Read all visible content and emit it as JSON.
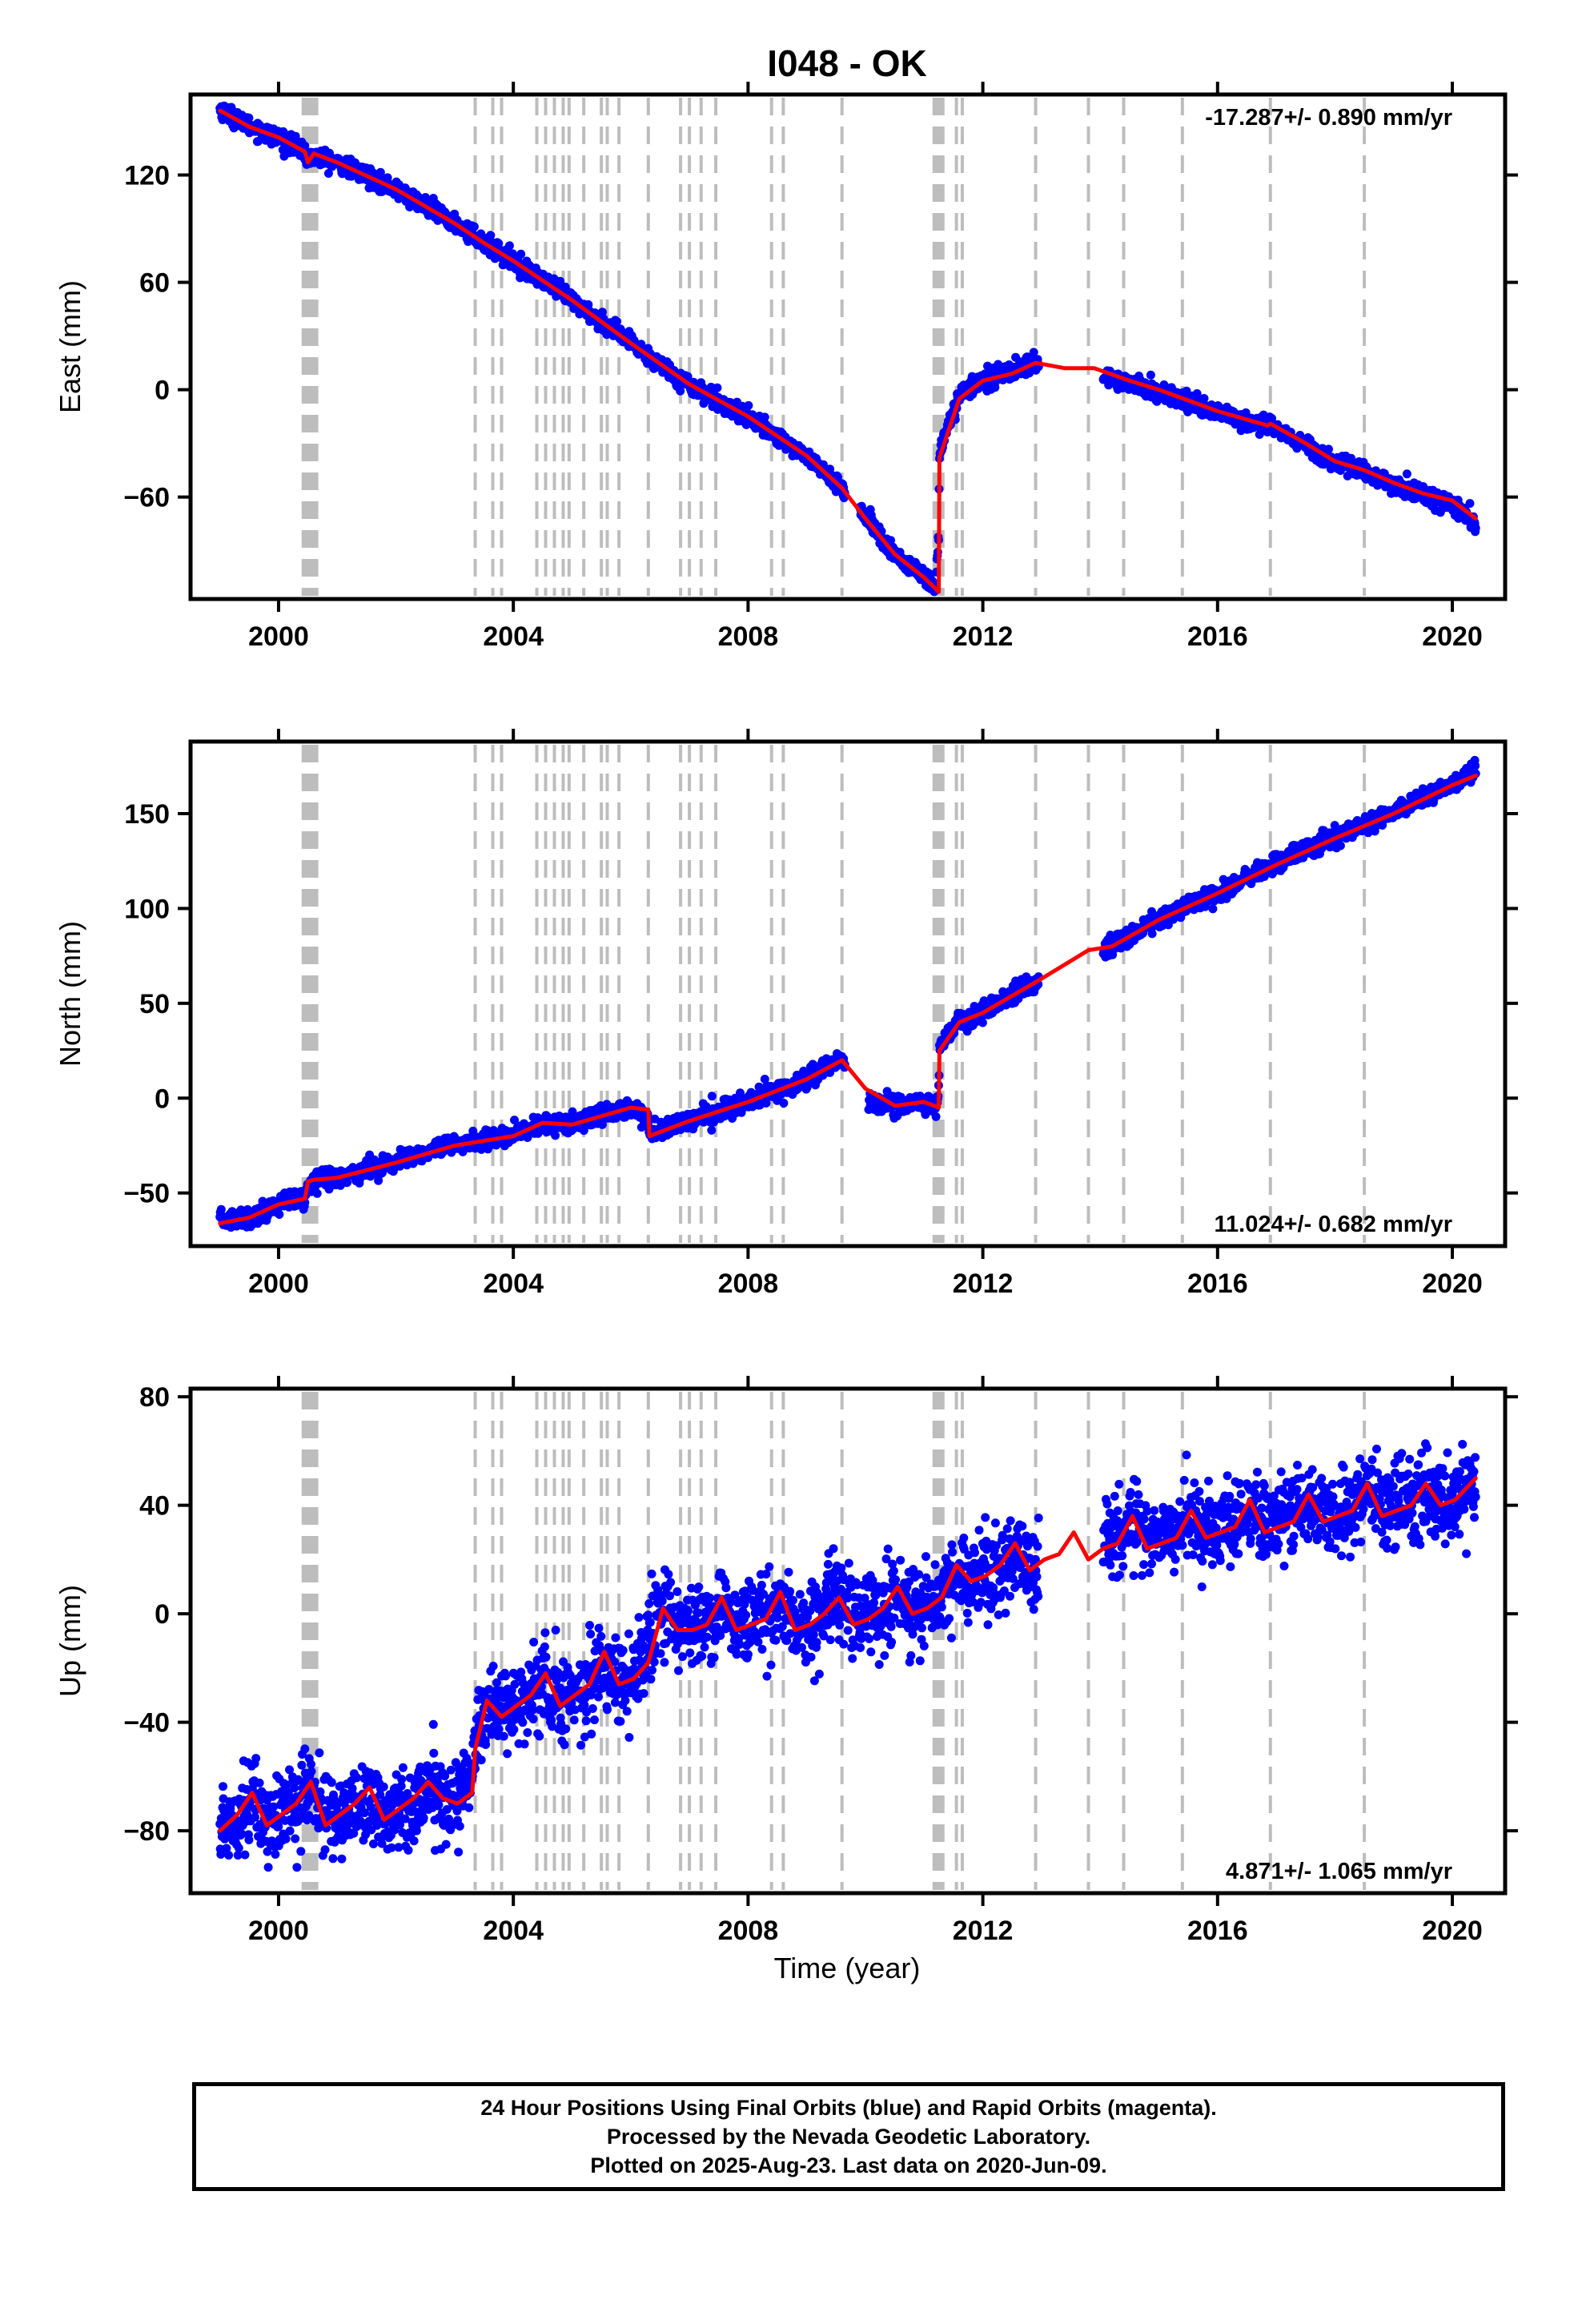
{
  "page": {
    "title": "I048 - OK",
    "x_label": "Time (year)",
    "footer": [
      "24 Hour Positions Using Final Orbits (blue) and Rapid Orbits (magenta).",
      "Processed by the Nevada Geodetic Laboratory.",
      "Plotted on 2025-Aug-23. Last data on 2020-Jun-09."
    ]
  },
  "colors": {
    "points": "#0000ff",
    "fit": "#ff0000",
    "events": "#bdbdbd",
    "frame": "#000000"
  },
  "chart_data": [
    {
      "type": "scatter",
      "component": "east",
      "title": "I048 - OK",
      "ylabel": "East (mm)",
      "xlabel": "",
      "xlim": [
        1998.5,
        2020.9
      ],
      "ylim": [
        -117,
        165
      ],
      "yticks": [
        120,
        60,
        0,
        -60
      ],
      "yticklabels": [
        "120",
        "60",
        "0",
        "−60"
      ],
      "xticks": [
        2000,
        2004,
        2008,
        2012,
        2016,
        2020
      ],
      "xticklabels": [
        "2000",
        "2004",
        "2008",
        "2012",
        "2016",
        "2020"
      ],
      "grid": false,
      "rate_label": "-17.287+/- 0.890 mm/yr",
      "rate_position": "top-right",
      "series": [
        {
          "kind": "daily positions",
          "x": [
            1999.0,
            1999.5,
            2000.0,
            2000.5,
            2000.6,
            2001.0,
            2002.0,
            2003.0,
            2003.5,
            2004.0,
            2005.0,
            2006.0,
            2007.0,
            2008.0,
            2009.0,
            2009.8,
            2010.5,
            2011.2,
            2011.25,
            2011.6,
            2012.0,
            2012.8,
            2013.0,
            2014.0,
            2015.0,
            2016.0,
            2016.9,
            2017.5,
            2018.0,
            2019.0,
            2019.5,
            2020.4
          ],
          "y": [
            158,
            148,
            140,
            131,
            128,
            127,
            112,
            93,
            82,
            72,
            50,
            26,
            2,
            -16,
            -38,
            -60,
            -93,
            -108,
            -28,
            0,
            8,
            15,
            14,
            5,
            -3,
            -13,
            -22,
            -32,
            -41,
            -54,
            -61,
            -76
          ]
        },
        {
          "kind": "model fit",
          "x": [
            1999.0,
            1999.5,
            2000.0,
            2000.45,
            2000.5,
            2000.6,
            2001.0,
            2002.0,
            2003.0,
            2003.5,
            2004.0,
            2005.0,
            2006.0,
            2007.0,
            2008.0,
            2009.0,
            2009.6,
            2010.0,
            2010.5,
            2011.0,
            2011.25,
            2011.26,
            2011.6,
            2012.0,
            2012.5,
            2012.9,
            2013.4,
            2013.9,
            2014.5,
            2015.0,
            2016.0,
            2016.85,
            2016.9,
            2017.5,
            2018.0,
            2018.5,
            2019.0,
            2019.5,
            2020.0,
            2020.4
          ],
          "y": [
            156,
            147,
            141,
            133,
            127,
            132,
            127,
            112,
            93,
            82,
            72,
            50,
            26,
            3,
            -15,
            -37,
            -55,
            -72,
            -92,
            -105,
            -113,
            -38,
            -5,
            5,
            9,
            15,
            12,
            12,
            5,
            0,
            -12,
            -20,
            -19,
            -30,
            -40,
            -45,
            -52,
            -58,
            -62,
            -72
          ]
        }
      ]
    },
    {
      "type": "scatter",
      "component": "north",
      "ylabel": "North (mm)",
      "xlabel": "",
      "xlim": [
        1998.5,
        2020.9
      ],
      "ylim": [
        -78,
        188
      ],
      "yticks": [
        150,
        100,
        50,
        0,
        -50
      ],
      "yticklabels": [
        "150",
        "100",
        "50",
        "0",
        "−50"
      ],
      "xticks": [
        2000,
        2004,
        2008,
        2012,
        2016,
        2020
      ],
      "xticklabels": [
        "2000",
        "2004",
        "2008",
        "2012",
        "2016",
        "2020"
      ],
      "grid": false,
      "rate_label": "11.024+/- 0.682 mm/yr",
      "rate_position": "bottom-right",
      "series": [
        {
          "kind": "daily positions",
          "x": [
            1999.0,
            1999.5,
            2000.0,
            2000.5,
            2000.6,
            2001.0,
            2002.0,
            2003.0,
            2004.0,
            2005.0,
            2006.0,
            2006.3,
            2007.0,
            2008.0,
            2009.0,
            2009.6,
            2010.0,
            2010.5,
            2011.2,
            2011.3,
            2012.0,
            2013.0,
            2014.0,
            2015.0,
            2016.0,
            2017.0,
            2018.0,
            2019.0,
            2020.0,
            2020.4
          ],
          "y": [
            -62,
            -63,
            -55,
            -52,
            -40,
            -41,
            -33,
            -24,
            -19,
            -12,
            -5,
            -18,
            -11,
            -3,
            10,
            22,
            -10,
            -3,
            -4,
            35,
            47,
            63,
            80,
            95,
            108,
            125,
            138,
            152,
            165,
            178
          ]
        },
        {
          "kind": "model fit",
          "x": [
            1999.0,
            1999.5,
            2000.0,
            2000.45,
            2000.5,
            2000.6,
            2001.0,
            2002.0,
            2003.0,
            2004.0,
            2004.5,
            2005.0,
            2006.0,
            2006.3,
            2006.32,
            2007.0,
            2008.0,
            2009.0,
            2009.6,
            2010.0,
            2010.5,
            2011.0,
            2011.25,
            2011.26,
            2011.6,
            2012.0,
            2013.0,
            2013.8,
            2014.2,
            2015.0,
            2016.0,
            2017.0,
            2018.0,
            2019.0,
            2020.0,
            2020.4
          ],
          "y": [
            -66,
            -63,
            -56,
            -53,
            -44,
            -43,
            -42,
            -34,
            -25,
            -20,
            -13,
            -14,
            -5,
            -6,
            -20,
            -12,
            -2,
            10,
            20,
            5,
            -4,
            -2,
            -5,
            25,
            40,
            45,
            63,
            78,
            80,
            94,
            108,
            123,
            137,
            150,
            165,
            170
          ]
        }
      ]
    },
    {
      "type": "scatter",
      "component": "up",
      "ylabel": "Up (mm)",
      "xlabel": "Time (year)",
      "xlim": [
        1998.5,
        2020.9
      ],
      "ylim": [
        -103,
        83
      ],
      "yticks": [
        80,
        40,
        0,
        -40,
        -80
      ],
      "yticklabels": [
        "80",
        "40",
        "0",
        "−40",
        "−80"
      ],
      "xticks": [
        2000,
        2004,
        2008,
        2012,
        2016,
        2020
      ],
      "xticklabels": [
        "2000",
        "2004",
        "2008",
        "2012",
        "2016",
        "2020"
      ],
      "grid": false,
      "rate_label": "4.871+/- 1.065 mm/yr",
      "rate_position": "bottom-right",
      "series": [
        {
          "kind": "daily positions",
          "x": [
            1999.0,
            1999.5,
            2000.0,
            2000.5,
            2001.0,
            2002.0,
            2003.0,
            2003.4,
            2004.0,
            2005.0,
            2006.0,
            2006.5,
            2007.0,
            2008.0,
            2009.0,
            2009.5,
            2010.0,
            2011.0,
            2012.0,
            2012.8,
            2014.0,
            2014.5,
            2015.0,
            2016.0,
            2017.0,
            2018.0,
            2019.0,
            2020.0,
            2020.4
          ],
          "y": [
            -78,
            -70,
            -75,
            -65,
            -75,
            -72,
            -70,
            -35,
            -32,
            -28,
            -22,
            2,
            -3,
            -3,
            -3,
            3,
            0,
            4,
            15,
            18,
            28,
            32,
            30,
            34,
            38,
            40,
            44,
            42,
            46
          ]
        },
        {
          "kind": "model fit",
          "x": [
            1999.0,
            1999.3,
            1999.55,
            1999.8,
            2000.05,
            2000.3,
            2000.55,
            2000.8,
            2001.05,
            2001.3,
            2001.55,
            2001.8,
            2002.05,
            2002.3,
            2002.55,
            2002.8,
            2003.05,
            2003.3,
            2003.35,
            2003.55,
            2003.8,
            2004.05,
            2004.3,
            2004.55,
            2004.8,
            2005.05,
            2005.3,
            2005.55,
            2005.8,
            2006.05,
            2006.3,
            2006.55,
            2006.8,
            2007.05,
            2007.3,
            2007.55,
            2007.8,
            2008.05,
            2008.3,
            2008.55,
            2008.8,
            2009.05,
            2009.3,
            2009.55,
            2009.8,
            2010.05,
            2010.3,
            2010.55,
            2010.8,
            2011.05,
            2011.3,
            2011.55,
            2011.8,
            2012.05,
            2012.3,
            2012.55,
            2012.8,
            2013.05,
            2013.3,
            2013.55,
            2013.8,
            2014.05,
            2014.3,
            2014.55,
            2014.8,
            2015.05,
            2015.3,
            2015.55,
            2015.8,
            2016.05,
            2016.3,
            2016.55,
            2016.8,
            2017.05,
            2017.3,
            2017.55,
            2017.8,
            2018.05,
            2018.3,
            2018.55,
            2018.8,
            2019.05,
            2019.3,
            2019.55,
            2019.8,
            2020.05,
            2020.4
          ],
          "y": [
            -80,
            -74,
            -66,
            -78,
            -74,
            -70,
            -62,
            -78,
            -74,
            -70,
            -64,
            -76,
            -72,
            -68,
            -62,
            -68,
            -70,
            -66,
            -50,
            -32,
            -38,
            -34,
            -30,
            -22,
            -34,
            -30,
            -26,
            -14,
            -26,
            -24,
            -18,
            2,
            -6,
            -6,
            -4,
            6,
            -6,
            -4,
            -2,
            8,
            -6,
            -4,
            0,
            6,
            -4,
            -2,
            2,
            10,
            0,
            2,
            6,
            18,
            12,
            14,
            18,
            26,
            16,
            20,
            22,
            30,
            20,
            24,
            26,
            36,
            24,
            26,
            28,
            38,
            28,
            30,
            32,
            42,
            30,
            32,
            34,
            44,
            34,
            36,
            38,
            48,
            36,
            38,
            40,
            48,
            40,
            42,
            50
          ]
        }
      ]
    }
  ],
  "events_x": [
    2000.42,
    2000.45,
    2000.48,
    2000.52,
    2000.55,
    2000.58,
    2000.62,
    2000.65,
    2003.35,
    2003.65,
    2003.8,
    2004.4,
    2004.55,
    2004.7,
    2004.85,
    2004.95,
    2005.2,
    2005.5,
    2005.6,
    2005.8,
    2006.3,
    2006.85,
    2007.0,
    2007.2,
    2007.45,
    2008.4,
    2008.6,
    2009.6,
    2011.17,
    2011.22,
    2011.27,
    2011.32,
    2011.55,
    2011.65,
    2012.9,
    2013.8,
    2014.4,
    2015.4,
    2016.9,
    2018.5
  ]
}
